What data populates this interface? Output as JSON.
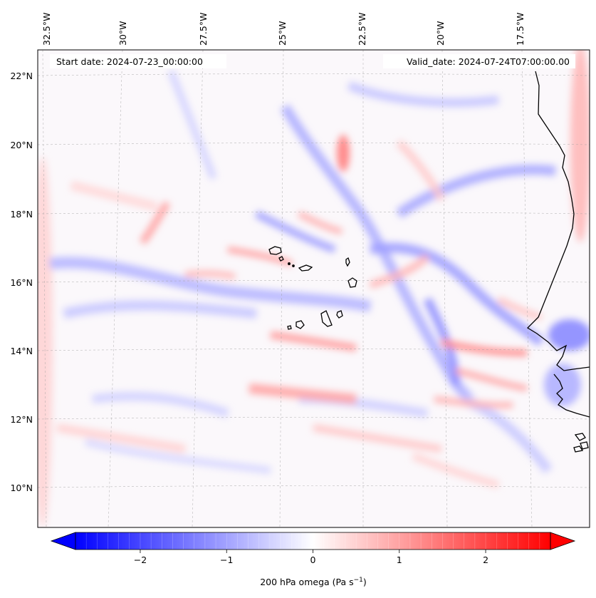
{
  "map": {
    "start_date": "Start date: 2024-07-23_00:00:00",
    "valid_date": "Valid_date: 2024-07-24T07:00:00.00",
    "lon_labels": [
      "32.5°W",
      "30°W",
      "27.5°W",
      "25°W",
      "22.5°W",
      "20°W",
      "17.5°W"
    ],
    "lat_labels": [
      "22°N",
      "20°N",
      "18°N",
      "16°N",
      "14°N",
      "12°N",
      "10°N"
    ],
    "gridlines": true,
    "coastline_color": "#000000"
  },
  "colorbar": {
    "label": "200 hPa omega (Pa s",
    "label_sup": "−1",
    "label_close": ")",
    "ticks": [
      "−2",
      "−1",
      "0",
      "1",
      "2"
    ],
    "range": [
      -2.75,
      2.75
    ],
    "colormap": "bwr",
    "extend": "both",
    "colors": {
      "min": "#0000ff",
      "mid": "#ffffff",
      "max": "#ff0000"
    }
  }
}
